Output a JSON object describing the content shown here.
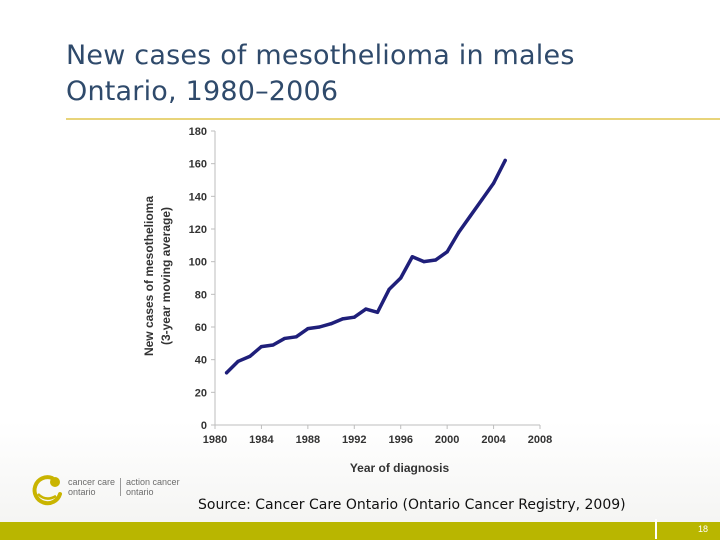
{
  "slide": {
    "title_line1": "New cases of mesothelioma in males",
    "title_line2": "Ontario, 1980–2006",
    "source": "Source: Cancer Care Ontario (Ontario Cancer Registry, 2009)",
    "page_number": "18",
    "accent_color": "#b9b600",
    "title_color": "#2f4a6b",
    "rule_color": "#e8d47a"
  },
  "logo": {
    "text_left_1": "cancer care",
    "text_left_2": "ontario",
    "text_right_1": "action cancer",
    "text_right_2": "ontario",
    "icon": "cancer-care-ontario-logo-icon",
    "color": "#c9b400"
  },
  "chart_data": {
    "type": "line",
    "xlabel": "Year of diagnosis",
    "ylabel": "New cases of mesothelioma",
    "ylabel_sub": "(3-year moving average)",
    "xlim": [
      1980,
      2008
    ],
    "ylim": [
      0,
      180
    ],
    "xticks": [
      1980,
      1984,
      1988,
      1992,
      1996,
      2000,
      2004,
      2008
    ],
    "yticks": [
      0,
      20,
      40,
      60,
      80,
      100,
      120,
      140,
      160,
      180
    ],
    "grid": false,
    "line_color": "#1f1f7a",
    "series": [
      {
        "x": [
          1981,
          1982,
          1983,
          1984,
          1985,
          1986,
          1987,
          1988,
          1989,
          1990,
          1991,
          1992,
          1993,
          1994,
          1995,
          1996,
          1997,
          1998,
          1999,
          2000,
          2001,
          2002,
          2003,
          2004,
          2005
        ],
        "values": [
          32,
          39,
          42,
          48,
          49,
          53,
          54,
          59,
          60,
          62,
          65,
          66,
          71,
          69,
          83,
          90,
          103,
          100,
          101,
          106,
          118,
          128,
          138,
          148,
          162
        ]
      }
    ]
  }
}
